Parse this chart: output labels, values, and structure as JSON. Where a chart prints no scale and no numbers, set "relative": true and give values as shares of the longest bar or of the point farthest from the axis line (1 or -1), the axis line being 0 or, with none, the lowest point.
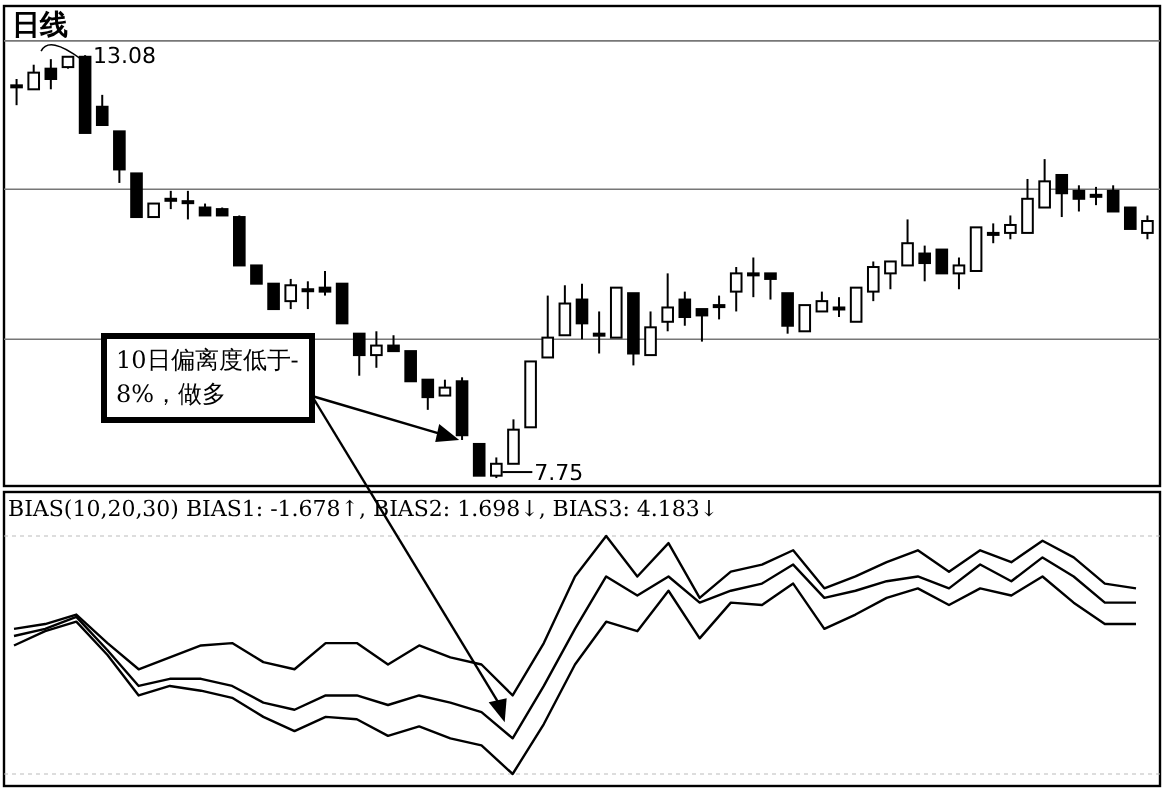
{
  "chart_data": [
    {
      "type": "candlestick",
      "title": "日线",
      "grid": "y",
      "ylim": [
        7.65,
        13.7
      ],
      "yticks": [
        {
          "value": 13.26,
          "label": null
        },
        {
          "value": 11.39,
          "label": null
        },
        {
          "value": 9.5,
          "label": null
        }
      ],
      "categories": [
        null,
        null,
        null,
        null,
        null,
        null,
        null,
        null,
        null,
        null,
        null,
        null,
        null,
        null,
        null,
        null,
        null,
        null,
        null,
        null,
        null,
        null,
        null,
        null,
        null,
        null,
        null,
        null,
        null,
        null,
        null,
        null,
        null,
        null,
        null,
        null,
        null,
        null,
        null,
        null,
        null,
        null,
        null,
        null,
        null,
        null,
        null,
        null,
        null,
        null,
        null,
        null,
        null,
        null,
        null,
        null,
        null,
        null,
        null,
        null,
        null,
        null,
        null,
        null,
        null,
        null,
        null
      ],
      "ohlc": [
        [
          12.7,
          12.78,
          12.45,
          12.7
        ],
        [
          12.65,
          12.96,
          12.65,
          12.86
        ],
        [
          12.91,
          13.03,
          12.65,
          12.78
        ],
        [
          12.93,
          13.06,
          12.91,
          13.06
        ],
        [
          13.06,
          13.08,
          12.1,
          12.1
        ],
        [
          12.43,
          12.58,
          12.2,
          12.2
        ],
        [
          12.12,
          12.12,
          11.47,
          11.64
        ],
        [
          11.59,
          11.59,
          11.04,
          11.04
        ],
        [
          11.04,
          11.21,
          11.04,
          11.21
        ],
        [
          11.27,
          11.37,
          11.14,
          11.27
        ],
        [
          11.24,
          11.37,
          11.01,
          11.24
        ],
        [
          11.16,
          11.21,
          11.06,
          11.06
        ],
        [
          11.14,
          11.16,
          11.06,
          11.06
        ],
        [
          11.04,
          11.06,
          10.43,
          10.43
        ],
        [
          10.43,
          10.43,
          10.2,
          10.2
        ],
        [
          10.2,
          10.2,
          9.88,
          9.88
        ],
        [
          9.98,
          10.26,
          9.88,
          10.18
        ],
        [
          10.13,
          10.23,
          9.88,
          10.13
        ],
        [
          10.15,
          10.36,
          10.05,
          10.1
        ],
        [
          10.2,
          10.2,
          9.7,
          9.7
        ],
        [
          9.57,
          9.57,
          9.04,
          9.3
        ],
        [
          9.3,
          9.6,
          9.14,
          9.42
        ],
        [
          9.42,
          9.55,
          9.35,
          9.35
        ],
        [
          9.35,
          9.35,
          8.97,
          8.97
        ],
        [
          8.99,
          8.99,
          8.61,
          8.77
        ],
        [
          8.79,
          8.99,
          8.79,
          8.89
        ],
        [
          8.97,
          9.02,
          8.23,
          8.29
        ],
        [
          8.18,
          8.18,
          7.78,
          7.78
        ],
        [
          7.78,
          8.01,
          7.75,
          7.93
        ],
        [
          7.93,
          8.49,
          7.93,
          8.36
        ],
        [
          8.39,
          9.22,
          8.39,
          9.22
        ],
        [
          9.27,
          10.05,
          9.27,
          9.52
        ],
        [
          9.55,
          10.18,
          9.55,
          9.95
        ],
        [
          10.0,
          10.2,
          9.5,
          9.7
        ],
        [
          9.57,
          9.85,
          9.32,
          9.57
        ],
        [
          9.52,
          10.15,
          9.52,
          10.15
        ],
        [
          10.08,
          10.08,
          9.17,
          9.32
        ],
        [
          9.3,
          9.85,
          9.3,
          9.65
        ],
        [
          9.72,
          10.33,
          9.6,
          9.9
        ],
        [
          10.0,
          10.1,
          9.67,
          9.78
        ],
        [
          9.88,
          9.88,
          9.47,
          9.8
        ],
        [
          9.93,
          10.05,
          9.75,
          9.93
        ],
        [
          10.1,
          10.41,
          9.85,
          10.33
        ],
        [
          10.33,
          10.53,
          10.03,
          10.33
        ],
        [
          10.33,
          10.33,
          10.0,
          10.26
        ],
        [
          10.08,
          10.08,
          9.57,
          9.67
        ],
        [
          9.6,
          9.93,
          9.6,
          9.93
        ],
        [
          9.85,
          10.1,
          9.85,
          9.98
        ],
        [
          9.9,
          10.03,
          9.78,
          9.9
        ],
        [
          9.72,
          10.15,
          9.72,
          10.15
        ],
        [
          10.1,
          10.48,
          9.98,
          10.41
        ],
        [
          10.33,
          10.48,
          10.13,
          10.48
        ],
        [
          10.43,
          11.01,
          10.43,
          10.71
        ],
        [
          10.58,
          10.68,
          10.23,
          10.46
        ],
        [
          10.63,
          10.63,
          10.33,
          10.33
        ],
        [
          10.33,
          10.53,
          10.13,
          10.43
        ],
        [
          10.36,
          10.91,
          10.36,
          10.91
        ],
        [
          10.84,
          10.96,
          10.71,
          10.84
        ],
        [
          10.84,
          11.06,
          10.76,
          10.94
        ],
        [
          10.84,
          11.52,
          10.84,
          11.27
        ],
        [
          11.16,
          11.77,
          11.16,
          11.49
        ],
        [
          11.57,
          11.57,
          11.04,
          11.34
        ],
        [
          11.37,
          11.44,
          11.11,
          11.27
        ],
        [
          11.32,
          11.42,
          11.19,
          11.32
        ],
        [
          11.37,
          11.44,
          11.11,
          11.11
        ],
        [
          11.16,
          11.16,
          10.89,
          10.89
        ],
        [
          10.84,
          11.06,
          10.76,
          10.99
        ]
      ],
      "annotations": [
        "13.08",
        "7.75",
        "10日偏离度低于-8%，做多"
      ]
    },
    {
      "type": "line",
      "title": "BIAS(10,20,30) BIAS1: -1.678↑, BIAS2: 1.698↓, BIAS3: 4.183↓",
      "relative": true,
      "categories": [
        null,
        null,
        null,
        null,
        null,
        null,
        null,
        null,
        null,
        null,
        null,
        null,
        null,
        null,
        null,
        null,
        null,
        null,
        null,
        null,
        null,
        null,
        null,
        null,
        null,
        null,
        null,
        null,
        null,
        null,
        null,
        null,
        null,
        null,
        null,
        null,
        null
      ],
      "series": [
        {
          "color": "#000000",
          "values": [
            0.61,
            0.63,
            0.67,
            0.55,
            0.44,
            0.49,
            0.54,
            0.55,
            0.47,
            0.44,
            0.55,
            0.55,
            0.46,
            0.54,
            0.49,
            0.46,
            0.33,
            0.55,
            0.83,
            1.0,
            0.83,
            0.97,
            0.74,
            0.85,
            0.88,
            0.94,
            0.78,
            0.83,
            0.89,
            0.94,
            0.85,
            0.94,
            0.89,
            0.98,
            0.91,
            0.8,
            0.78
          ]
        },
        {
          "color": "#000000",
          "values": [
            0.58,
            0.61,
            0.66,
            0.52,
            0.37,
            0.4,
            0.4,
            0.37,
            0.3,
            0.27,
            0.33,
            0.33,
            0.29,
            0.33,
            0.3,
            0.26,
            0.15,
            0.37,
            0.61,
            0.83,
            0.75,
            0.83,
            0.72,
            0.77,
            0.8,
            0.88,
            0.74,
            0.77,
            0.81,
            0.83,
            0.78,
            0.88,
            0.81,
            0.91,
            0.83,
            0.72,
            0.72
          ]
        },
        {
          "color": "#000000",
          "values": [
            0.54,
            0.6,
            0.64,
            0.5,
            0.33,
            0.37,
            0.35,
            0.32,
            0.24,
            0.18,
            0.24,
            0.23,
            0.16,
            0.2,
            0.15,
            0.12,
            0,
            0.21,
            0.46,
            0.64,
            0.6,
            0.77,
            0.57,
            0.72,
            0.71,
            0.8,
            0.61,
            0.67,
            0.74,
            0.78,
            0.71,
            0.78,
            0.75,
            0.83,
            0.72,
            0.63,
            0.63
          ]
        }
      ]
    }
  ]
}
